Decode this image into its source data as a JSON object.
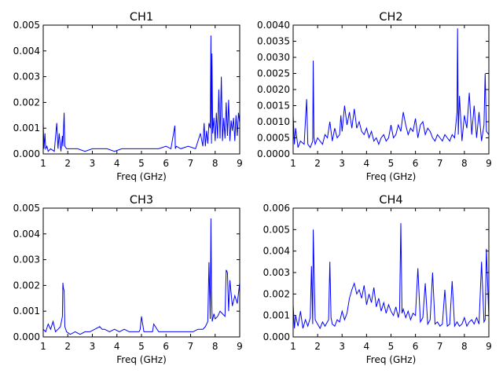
{
  "chart_data": [
    {
      "type": "line",
      "title": "CH1",
      "xlabel": "Freq (GHz)",
      "ylabel": "",
      "xlim": [
        1,
        9
      ],
      "ylim": [
        0,
        0.005
      ],
      "xticks": [
        1,
        2,
        3,
        4,
        5,
        6,
        7,
        8,
        9
      ],
      "xtick_labels": [
        "1",
        "2",
        "3",
        "4",
        "5",
        "6",
        "7",
        "8",
        "9"
      ],
      "yticks": [
        0,
        0.001,
        0.002,
        0.003,
        0.004,
        0.005
      ],
      "ytick_labels": [
        "0.000",
        "0.001",
        "0.002",
        "0.003",
        "0.004",
        "0.005"
      ],
      "grid": false,
      "color": "#0000ff",
      "series": [
        {
          "x": [
            1.0,
            1.03,
            1.07,
            1.1,
            1.15,
            1.2,
            1.3,
            1.45,
            1.55,
            1.6,
            1.65,
            1.72,
            1.78,
            1.8,
            1.85,
            1.88,
            1.95,
            2.1,
            2.4,
            2.7,
            3.0,
            3.3,
            3.6,
            3.9,
            4.2,
            4.5,
            4.8,
            5.1,
            5.4,
            5.7,
            6.0,
            6.2,
            6.36,
            6.38,
            6.42,
            6.6,
            6.9,
            7.2,
            7.4,
            7.5,
            7.55,
            7.6,
            7.65,
            7.7,
            7.75,
            7.8,
            7.83,
            7.85,
            7.87,
            7.9,
            7.95,
            8.0,
            8.05,
            8.1,
            8.15,
            8.2,
            8.25,
            8.3,
            8.35,
            8.4,
            8.45,
            8.5,
            8.55,
            8.6,
            8.65,
            8.7,
            8.75,
            8.8,
            8.85,
            8.9,
            8.95,
            9.0
          ],
          "y": [
            0.0012,
            0.0002,
            0.0008,
            0.0002,
            0.0003,
            0.0001,
            0.0002,
            0.0001,
            0.0012,
            0.0002,
            0.0008,
            0.0001,
            0.0007,
            0.0003,
            0.0016,
            0.0003,
            0.0002,
            0.0002,
            0.0002,
            0.0001,
            0.0002,
            0.0002,
            0.0002,
            0.0001,
            0.0002,
            0.0002,
            0.0002,
            0.0002,
            0.0002,
            0.0002,
            0.0003,
            0.0002,
            0.0011,
            0.0002,
            0.0003,
            0.0002,
            0.0003,
            0.0002,
            0.0008,
            0.0003,
            0.0012,
            0.0003,
            0.0009,
            0.0004,
            0.0012,
            0.001,
            0.0046,
            0.0004,
            0.0039,
            0.0008,
            0.0014,
            0.0005,
            0.0016,
            0.0006,
            0.0025,
            0.0006,
            0.003,
            0.0005,
            0.0014,
            0.0006,
            0.002,
            0.0007,
            0.0021,
            0.0005,
            0.0013,
            0.0009,
            0.0014,
            0.0005,
            0.0015,
            0.0007,
            0.0016,
            0.0012
          ]
        }
      ]
    },
    {
      "type": "line",
      "title": "CH2",
      "xlabel": "Freq (GHz)",
      "ylabel": "",
      "xlim": [
        1,
        9
      ],
      "ylim": [
        0,
        0.004
      ],
      "xticks": [
        1,
        2,
        3,
        4,
        5,
        6,
        7,
        8,
        9
      ],
      "xtick_labels": [
        "1",
        "2",
        "3",
        "4",
        "5",
        "6",
        "7",
        "8",
        "9"
      ],
      "yticks": [
        0,
        0.0005,
        0.001,
        0.0015,
        0.002,
        0.0025,
        0.003,
        0.0035,
        0.004
      ],
      "ytick_labels": [
        "0.0000",
        "0.0005",
        "0.0010",
        "0.0015",
        "0.0020",
        "0.0025",
        "0.0030",
        "0.0035",
        "0.0040"
      ],
      "grid": false,
      "color": "#0000ff",
      "series": [
        {
          "x": [
            1.0,
            1.05,
            1.1,
            1.2,
            1.3,
            1.45,
            1.55,
            1.6,
            1.7,
            1.8,
            1.82,
            1.85,
            1.9,
            2.0,
            2.1,
            2.2,
            2.3,
            2.4,
            2.5,
            2.6,
            2.7,
            2.8,
            2.9,
            2.95,
            3.0,
            3.1,
            3.2,
            3.3,
            3.4,
            3.5,
            3.6,
            3.7,
            3.8,
            3.9,
            4.0,
            4.1,
            4.2,
            4.3,
            4.4,
            4.5,
            4.6,
            4.7,
            4.8,
            4.9,
            5.0,
            5.1,
            5.2,
            5.3,
            5.4,
            5.5,
            5.6,
            5.7,
            5.8,
            5.9,
            6.0,
            6.1,
            6.2,
            6.3,
            6.4,
            6.5,
            6.6,
            6.7,
            6.8,
            6.9,
            7.0,
            7.1,
            7.2,
            7.3,
            7.4,
            7.5,
            7.6,
            7.7,
            7.72,
            7.75,
            7.8,
            7.9,
            8.0,
            8.1,
            8.2,
            8.3,
            8.4,
            8.5,
            8.6,
            8.7,
            8.8,
            8.85,
            8.9,
            9.0
          ],
          "y": [
            0.0012,
            0.0003,
            0.0008,
            0.0002,
            0.0004,
            0.0003,
            0.0017,
            0.0003,
            0.0002,
            0.0004,
            0.0029,
            0.0005,
            0.0003,
            0.0005,
            0.0004,
            0.0003,
            0.0006,
            0.0005,
            0.001,
            0.0004,
            0.0008,
            0.0005,
            0.0006,
            0.0012,
            0.0007,
            0.0015,
            0.0009,
            0.0013,
            0.0008,
            0.0014,
            0.0008,
            0.001,
            0.0007,
            0.0006,
            0.0008,
            0.0005,
            0.0007,
            0.0004,
            0.0005,
            0.0003,
            0.0005,
            0.0006,
            0.0004,
            0.0005,
            0.0009,
            0.0005,
            0.0006,
            0.0009,
            0.0007,
            0.0013,
            0.0009,
            0.0006,
            0.0008,
            0.0007,
            0.0011,
            0.0005,
            0.0009,
            0.001,
            0.0006,
            0.0008,
            0.0007,
            0.0005,
            0.0004,
            0.0006,
            0.0005,
            0.0004,
            0.0006,
            0.0005,
            0.0004,
            0.0006,
            0.0005,
            0.0013,
            0.0039,
            0.0006,
            0.0018,
            0.0004,
            0.0012,
            0.0008,
            0.0019,
            0.0006,
            0.0015,
            0.0005,
            0.0013,
            0.0004,
            0.0009,
            0.0025,
            0.0007,
            0.0006
          ]
        }
      ]
    },
    {
      "type": "line",
      "title": "CH3",
      "xlabel": "Freq (GHz)",
      "ylabel": "",
      "xlim": [
        1,
        9
      ],
      "ylim": [
        0,
        0.005
      ],
      "xticks": [
        1,
        2,
        3,
        4,
        5,
        6,
        7,
        8,
        9
      ],
      "xtick_labels": [
        "1",
        "2",
        "3",
        "4",
        "5",
        "6",
        "7",
        "8",
        "9"
      ],
      "yticks": [
        0,
        0.001,
        0.002,
        0.003,
        0.004,
        0.005
      ],
      "ytick_labels": [
        "0.000",
        "0.001",
        "0.002",
        "0.003",
        "0.004",
        "0.005"
      ],
      "grid": false,
      "color": "#0000ff",
      "series": [
        {
          "x": [
            1.0,
            1.1,
            1.2,
            1.3,
            1.4,
            1.5,
            1.6,
            1.7,
            1.78,
            1.8,
            1.82,
            1.85,
            1.88,
            1.95,
            2.1,
            2.3,
            2.5,
            2.7,
            2.9,
            3.1,
            3.3,
            3.4,
            3.5,
            3.7,
            3.9,
            4.1,
            4.3,
            4.5,
            4.7,
            4.9,
            4.95,
            5.0,
            5.1,
            5.3,
            5.45,
            5.5,
            5.7,
            5.9,
            6.1,
            6.3,
            6.5,
            6.7,
            6.9,
            7.1,
            7.3,
            7.5,
            7.6,
            7.7,
            7.75,
            7.8,
            7.83,
            7.85,
            7.88,
            7.95,
            8.0,
            8.1,
            8.2,
            8.3,
            8.4,
            8.45,
            8.5,
            8.55,
            8.6,
            8.7,
            8.8,
            8.9,
            9.0
          ],
          "y": [
            0.0003,
            0.0002,
            0.0005,
            0.0003,
            0.0006,
            0.0002,
            0.0003,
            0.0004,
            0.0008,
            0.0021,
            0.0019,
            0.0018,
            0.0004,
            0.0002,
            0.0001,
            0.0002,
            0.0001,
            0.0002,
            0.0002,
            0.0003,
            0.0004,
            0.0003,
            0.0003,
            0.0002,
            0.0003,
            0.0002,
            0.0003,
            0.0002,
            0.0002,
            0.0002,
            0.0003,
            0.0008,
            0.0002,
            0.0002,
            0.0002,
            0.0005,
            0.0002,
            0.0002,
            0.0002,
            0.0002,
            0.0002,
            0.0002,
            0.0002,
            0.0002,
            0.0003,
            0.0003,
            0.0004,
            0.0006,
            0.0029,
            0.0007,
            0.0046,
            0.0018,
            0.0006,
            0.0009,
            0.0007,
            0.0008,
            0.001,
            0.0009,
            0.0008,
            0.0026,
            0.0025,
            0.001,
            0.0022,
            0.0012,
            0.0016,
            0.0013,
            0.0021
          ]
        }
      ]
    },
    {
      "type": "line",
      "title": "CH4",
      "xlabel": "Freq (GHz)",
      "ylabel": "",
      "xlim": [
        1,
        9
      ],
      "ylim": [
        0,
        0.006
      ],
      "xticks": [
        1,
        2,
        3,
        4,
        5,
        6,
        7,
        8,
        9
      ],
      "xtick_labels": [
        "1",
        "2",
        "3",
        "4",
        "5",
        "6",
        "7",
        "8",
        "9"
      ],
      "yticks": [
        0,
        0.001,
        0.002,
        0.003,
        0.004,
        0.005,
        0.006
      ],
      "ytick_labels": [
        "0.000",
        "0.001",
        "0.002",
        "0.003",
        "0.004",
        "0.005",
        "0.006"
      ],
      "grid": false,
      "color": "#0000ff",
      "series": [
        {
          "x": [
            1.0,
            1.05,
            1.1,
            1.2,
            1.3,
            1.4,
            1.5,
            1.6,
            1.7,
            1.75,
            1.8,
            1.82,
            1.9,
            2.0,
            2.1,
            2.2,
            2.3,
            2.45,
            2.5,
            2.55,
            2.6,
            2.7,
            2.8,
            2.9,
            3.0,
            3.1,
            3.2,
            3.3,
            3.4,
            3.5,
            3.6,
            3.7,
            3.8,
            3.9,
            4.0,
            4.1,
            4.2,
            4.3,
            4.4,
            4.5,
            4.6,
            4.7,
            4.8,
            4.9,
            5.0,
            5.1,
            5.2,
            5.3,
            5.35,
            5.4,
            5.45,
            5.5,
            5.6,
            5.7,
            5.8,
            5.9,
            6.0,
            6.1,
            6.2,
            6.3,
            6.4,
            6.5,
            6.6,
            6.7,
            6.8,
            6.9,
            7.0,
            7.1,
            7.2,
            7.3,
            7.4,
            7.5,
            7.6,
            7.7,
            7.8,
            7.9,
            8.0,
            8.1,
            8.2,
            8.3,
            8.4,
            8.5,
            8.6,
            8.7,
            8.8,
            8.85,
            8.9,
            9.0
          ],
          "y": [
            0.0015,
            0.0004,
            0.001,
            0.0005,
            0.0012,
            0.0004,
            0.0008,
            0.0005,
            0.0009,
            0.0033,
            0.0006,
            0.005,
            0.0008,
            0.0006,
            0.0004,
            0.0007,
            0.0005,
            0.0008,
            0.0035,
            0.0009,
            0.0006,
            0.0005,
            0.0008,
            0.0007,
            0.0012,
            0.0008,
            0.0011,
            0.0018,
            0.0022,
            0.0025,
            0.002,
            0.0022,
            0.0018,
            0.0024,
            0.0015,
            0.002,
            0.0016,
            0.0023,
            0.0014,
            0.0018,
            0.0012,
            0.0016,
            0.0011,
            0.0015,
            0.0012,
            0.001,
            0.0014,
            0.0009,
            0.0012,
            0.0053,
            0.0011,
            0.0013,
            0.0009,
            0.0012,
            0.0008,
            0.0011,
            0.001,
            0.0032,
            0.0007,
            0.0009,
            0.0025,
            0.0006,
            0.0008,
            0.003,
            0.0006,
            0.0007,
            0.0005,
            0.0006,
            0.0022,
            0.0005,
            0.0006,
            0.0026,
            0.0005,
            0.0007,
            0.0005,
            0.0006,
            0.0009,
            0.0005,
            0.0007,
            0.0008,
            0.0006,
            0.0009,
            0.0006,
            0.0035,
            0.0007,
            0.0008,
            0.0041,
            0.0009
          ]
        }
      ]
    }
  ]
}
